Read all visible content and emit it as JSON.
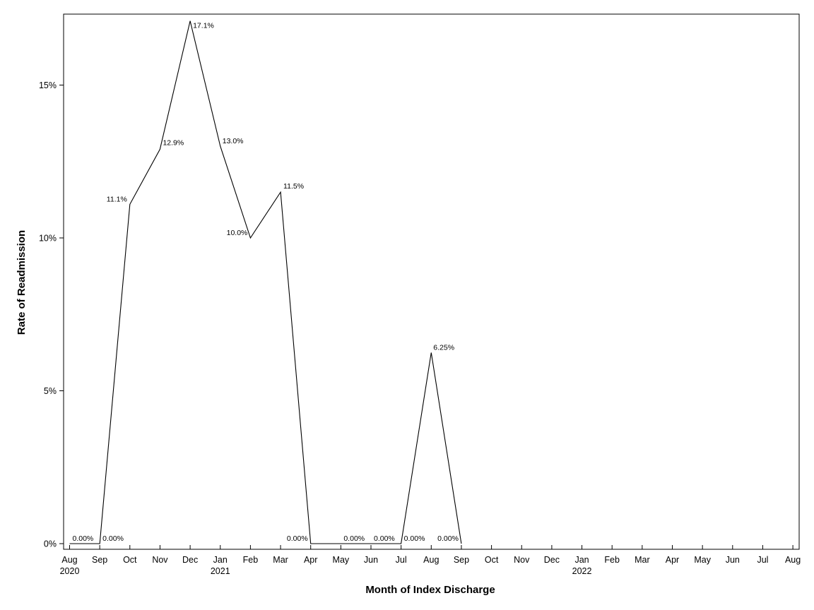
{
  "chart_data": {
    "type": "line",
    "title": "",
    "xlabel": "Month of Index Discharge",
    "ylabel": "Rate of Readmission",
    "x_ticks": [
      {
        "month": "Aug",
        "year": "2020"
      },
      {
        "month": "Sep",
        "year": ""
      },
      {
        "month": "Oct",
        "year": ""
      },
      {
        "month": "Nov",
        "year": ""
      },
      {
        "month": "Dec",
        "year": ""
      },
      {
        "month": "Jan",
        "year": "2021"
      },
      {
        "month": "Feb",
        "year": ""
      },
      {
        "month": "Mar",
        "year": ""
      },
      {
        "month": "Apr",
        "year": ""
      },
      {
        "month": "May",
        "year": ""
      },
      {
        "month": "Jun",
        "year": ""
      },
      {
        "month": "Jul",
        "year": ""
      },
      {
        "month": "Aug",
        "year": ""
      },
      {
        "month": "Sep",
        "year": ""
      },
      {
        "month": "Oct",
        "year": ""
      },
      {
        "month": "Nov",
        "year": ""
      },
      {
        "month": "Dec",
        "year": ""
      },
      {
        "month": "Jan",
        "year": "2022"
      },
      {
        "month": "Feb",
        "year": ""
      },
      {
        "month": "Mar",
        "year": ""
      },
      {
        "month": "Apr",
        "year": ""
      },
      {
        "month": "May",
        "year": ""
      },
      {
        "month": "Jun",
        "year": ""
      },
      {
        "month": "Jul",
        "year": ""
      },
      {
        "month": "Aug",
        "year": ""
      }
    ],
    "y_ticks": [
      {
        "value": 0,
        "label": "0%"
      },
      {
        "value": 5,
        "label": "5%"
      },
      {
        "value": 10,
        "label": "10%"
      },
      {
        "value": 15,
        "label": "15%"
      }
    ],
    "ylim": [
      0,
      17.1
    ],
    "xlim": [
      "2020-08",
      "2022-08"
    ],
    "grid": false,
    "series": [
      {
        "line_color": "#000000",
        "points": [
          {
            "x": "2020-08",
            "y": 0,
            "label": "0.00%"
          },
          {
            "x": "2020-09",
            "y": 0,
            "label": "0.00%"
          },
          {
            "x": "2020-10",
            "y": 11.1,
            "label": "11.1%"
          },
          {
            "x": "2020-11",
            "y": 12.9,
            "label": "12.9%"
          },
          {
            "x": "2020-12",
            "y": 17.1,
            "label": "17.1%"
          },
          {
            "x": "2021-01",
            "y": 13.0,
            "label": "13.0%"
          },
          {
            "x": "2021-02",
            "y": 10.0,
            "label": "10.0%"
          },
          {
            "x": "2021-03",
            "y": 11.5,
            "label": "11.5%"
          },
          {
            "x": "2021-04",
            "y": 0,
            "label": "0.00%"
          },
          {
            "x": "2021-05",
            "y": 0,
            "label": "0.00%"
          },
          {
            "x": "2021-06",
            "y": 0,
            "label": "0.00%"
          },
          {
            "x": "2021-07",
            "y": 0,
            "label": "0.00%"
          },
          {
            "x": "2021-08",
            "y": 6.25,
            "label": "6.25%"
          },
          {
            "x": "2021-09",
            "y": 0,
            "label": "0.00%"
          }
        ]
      }
    ]
  }
}
